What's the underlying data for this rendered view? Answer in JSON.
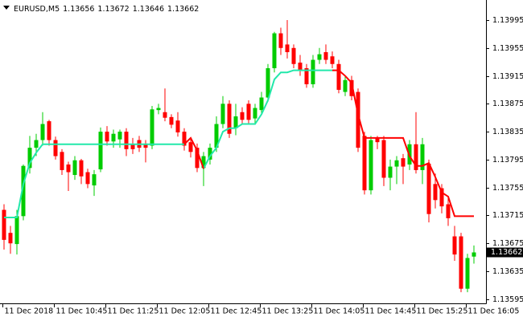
{
  "chart_data": {
    "type": "candlestick",
    "symbol": "EURUSD,M5",
    "header_ohlc": [
      1.13656,
      1.13672,
      1.13646,
      1.13662
    ],
    "last_price": 1.13662,
    "categories": [
      "11 Dec 2018",
      null,
      null,
      null,
      null,
      null,
      null,
      null,
      "11 Dec 10:45",
      null,
      null,
      null,
      null,
      null,
      null,
      null,
      "11 Dec 11:25",
      null,
      null,
      null,
      null,
      null,
      null,
      null,
      "11 Dec 12:05",
      null,
      null,
      null,
      null,
      null,
      null,
      null,
      "11 Dec 12:45",
      null,
      null,
      null,
      null,
      null,
      null,
      null,
      "11 Dec 13:25",
      null,
      null,
      null,
      null,
      null,
      null,
      null,
      "11 Dec 14:05",
      null,
      null,
      null,
      null,
      null,
      null,
      null,
      "11 Dec 14:45",
      null,
      null,
      null,
      null,
      null,
      null,
      null,
      "11 Dec 15:25",
      null,
      null,
      null,
      null,
      null,
      null,
      null,
      "11 Dec 16:05",
      null
    ],
    "open": [
      1.13723,
      1.1369,
      1.13674,
      1.13714,
      1.13783,
      1.13812,
      1.13823,
      1.1385,
      1.13823,
      1.13806,
      1.13788,
      1.13773,
      1.13794,
      1.13777,
      1.13758,
      1.13781,
      1.13835,
      1.13821,
      1.13824,
      1.13835,
      1.13817,
      1.13823,
      1.13818,
      1.13815,
      1.13866,
      1.13863,
      1.13856,
      1.13851,
      1.13835,
      1.1382,
      1.13812,
      1.13783,
      1.13795,
      1.13812,
      1.13846,
      1.13875,
      1.1384,
      1.13863,
      1.13875,
      1.13854,
      1.13866,
      1.13884,
      1.13926,
      1.13976,
      1.1396,
      1.13955,
      1.13934,
      1.13926,
      1.13903,
      1.13938,
      1.13949,
      1.13943,
      1.13932,
      1.13892,
      1.13909,
      1.13892,
      1.13829,
      1.13751,
      1.13826,
      1.13823,
      1.13769,
      1.13785,
      1.13797,
      1.13788,
      1.13817,
      1.1378,
      1.13789,
      1.1376,
      1.13754,
      1.13731,
      1.13685,
      1.13685,
      1.1361,
      1.13656
    ],
    "high": [
      1.13731,
      1.137,
      1.13723,
      1.13788,
      1.13829,
      1.13832,
      1.13863,
      1.13852,
      1.13828,
      1.1381,
      1.13792,
      1.138,
      1.13796,
      1.13782,
      1.1378,
      1.13841,
      1.13843,
      1.13838,
      1.13838,
      1.1384,
      1.13826,
      1.13829,
      1.13823,
      1.13872,
      1.13875,
      1.13897,
      1.1386,
      1.13863,
      1.1384,
      1.13826,
      1.13818,
      1.13806,
      1.13818,
      1.13857,
      1.13886,
      1.1388,
      1.13875,
      1.1387,
      1.1388,
      1.13875,
      1.13892,
      1.13932,
      1.13978,
      1.13984,
      1.13995,
      1.1396,
      1.13945,
      1.13932,
      1.13945,
      1.13955,
      1.1396,
      1.1395,
      1.13938,
      1.13915,
      1.13915,
      1.13897,
      1.13835,
      1.13829,
      1.13829,
      1.13829,
      1.13795,
      1.138,
      1.13803,
      1.13823,
      1.13863,
      1.13826,
      1.13795,
      1.13775,
      1.1376,
      1.1374,
      1.137,
      1.1369,
      1.1366,
      1.13672
    ],
    "low": [
      1.13666,
      1.1366,
      1.13659,
      1.13708,
      1.13775,
      1.138,
      1.13815,
      1.13815,
      1.13795,
      1.13773,
      1.1375,
      1.13766,
      1.1376,
      1.13754,
      1.13743,
      1.13777,
      1.13815,
      1.13812,
      1.13812,
      1.138,
      1.13803,
      1.13806,
      1.13791,
      1.1381,
      1.1386,
      1.1385,
      1.1384,
      1.13828,
      1.13808,
      1.13798,
      1.13777,
      1.13757,
      1.13788,
      1.13806,
      1.1384,
      1.13826,
      1.1383,
      1.13845,
      1.13845,
      1.13845,
      1.1386,
      1.13878,
      1.1392,
      1.13945,
      1.1394,
      1.13926,
      1.13915,
      1.13898,
      1.13898,
      1.13932,
      1.13932,
      1.13926,
      1.1389,
      1.13886,
      1.1388,
      1.13806,
      1.13745,
      1.13745,
      1.1381,
      1.13757,
      1.13751,
      1.1376,
      1.1376,
      1.1378,
      1.13775,
      1.1376,
      1.13705,
      1.13725,
      1.13718,
      1.137,
      1.1365,
      1.13605,
      1.13605,
      1.13646
    ],
    "close": [
      1.1368,
      1.13675,
      1.13714,
      1.13786,
      1.13812,
      1.13823,
      1.13846,
      1.13823,
      1.138,
      1.1378,
      1.13777,
      1.13794,
      1.13771,
      1.1376,
      1.13774,
      1.13835,
      1.13821,
      1.13832,
      1.13835,
      1.1381,
      1.1381,
      1.13812,
      1.13812,
      1.13867,
      1.13869,
      1.13855,
      1.13845,
      1.13834,
      1.13815,
      1.13806,
      1.13783,
      1.138,
      1.13812,
      1.13846,
      1.13875,
      1.13832,
      1.13857,
      1.13852,
      1.13852,
      1.13869,
      1.13884,
      1.13926,
      1.13976,
      1.13955,
      1.13949,
      1.13932,
      1.13923,
      1.13903,
      1.13938,
      1.13946,
      1.13938,
      1.13932,
      1.13895,
      1.13909,
      1.13886,
      1.13812,
      1.13751,
      1.13823,
      1.1382,
      1.13769,
      1.13785,
      1.13794,
      1.13785,
      1.13817,
      1.1378,
      1.13817,
      1.13717,
      1.13737,
      1.13728,
      1.13711,
      1.13659,
      1.1361,
      1.13654,
      1.13662
    ],
    "up_color": "#00cc00",
    "down_color": "#ff0000",
    "series": [
      {
        "color": "#22e8aa",
        "values": [
          1.13712,
          1.13712,
          1.13712,
          1.1376,
          1.1379,
          1.13805,
          1.13817,
          1.13817,
          1.13817,
          1.13817,
          1.13817,
          1.13817,
          1.13817,
          1.13817,
          1.13817,
          1.13817,
          1.13817,
          1.13817,
          1.13817,
          1.13817,
          1.13817,
          1.13817,
          1.13817,
          1.13817,
          1.13817,
          1.13817,
          1.13817,
          1.13817,
          1.13817,
          null,
          null,
          1.13782,
          1.138,
          1.13812,
          1.13835,
          1.1384,
          1.1384,
          1.13846,
          1.13846,
          1.13846,
          1.1386,
          1.1388,
          1.1391,
          1.1392,
          1.1392,
          1.13923,
          1.13923,
          1.13923,
          1.13923,
          1.13923,
          1.13923,
          1.13923,
          null,
          null,
          null,
          null,
          null,
          null,
          null,
          null,
          null,
          null,
          null,
          null,
          null,
          null,
          null,
          null,
          null,
          null,
          null,
          null,
          null,
          null
        ]
      },
      {
        "color": "#ff0000",
        "values": [
          null,
          null,
          null,
          null,
          null,
          null,
          null,
          null,
          null,
          null,
          null,
          null,
          null,
          null,
          null,
          null,
          null,
          null,
          null,
          null,
          null,
          null,
          null,
          null,
          null,
          null,
          null,
          null,
          1.13817,
          1.13826,
          1.13808,
          1.13782,
          null,
          null,
          null,
          null,
          null,
          null,
          null,
          null,
          null,
          null,
          null,
          null,
          null,
          null,
          null,
          null,
          null,
          null,
          null,
          1.13923,
          1.13923,
          1.13915,
          1.13905,
          1.1386,
          1.13826,
          1.13826,
          1.13826,
          1.13826,
          1.13826,
          1.13826,
          1.13826,
          1.138,
          1.13786,
          1.13786,
          1.1379,
          1.1377,
          1.13748,
          1.13742,
          1.13714,
          1.13714,
          1.13714,
          1.13714
        ]
      }
    ],
    "ylim": [
      1.13589,
      1.14018
    ],
    "yticks": [
      1.13595,
      1.13635,
      1.13675,
      1.13715,
      1.13755,
      1.13795,
      1.13835,
      1.13875,
      1.13915,
      1.13955,
      1.13995
    ]
  }
}
